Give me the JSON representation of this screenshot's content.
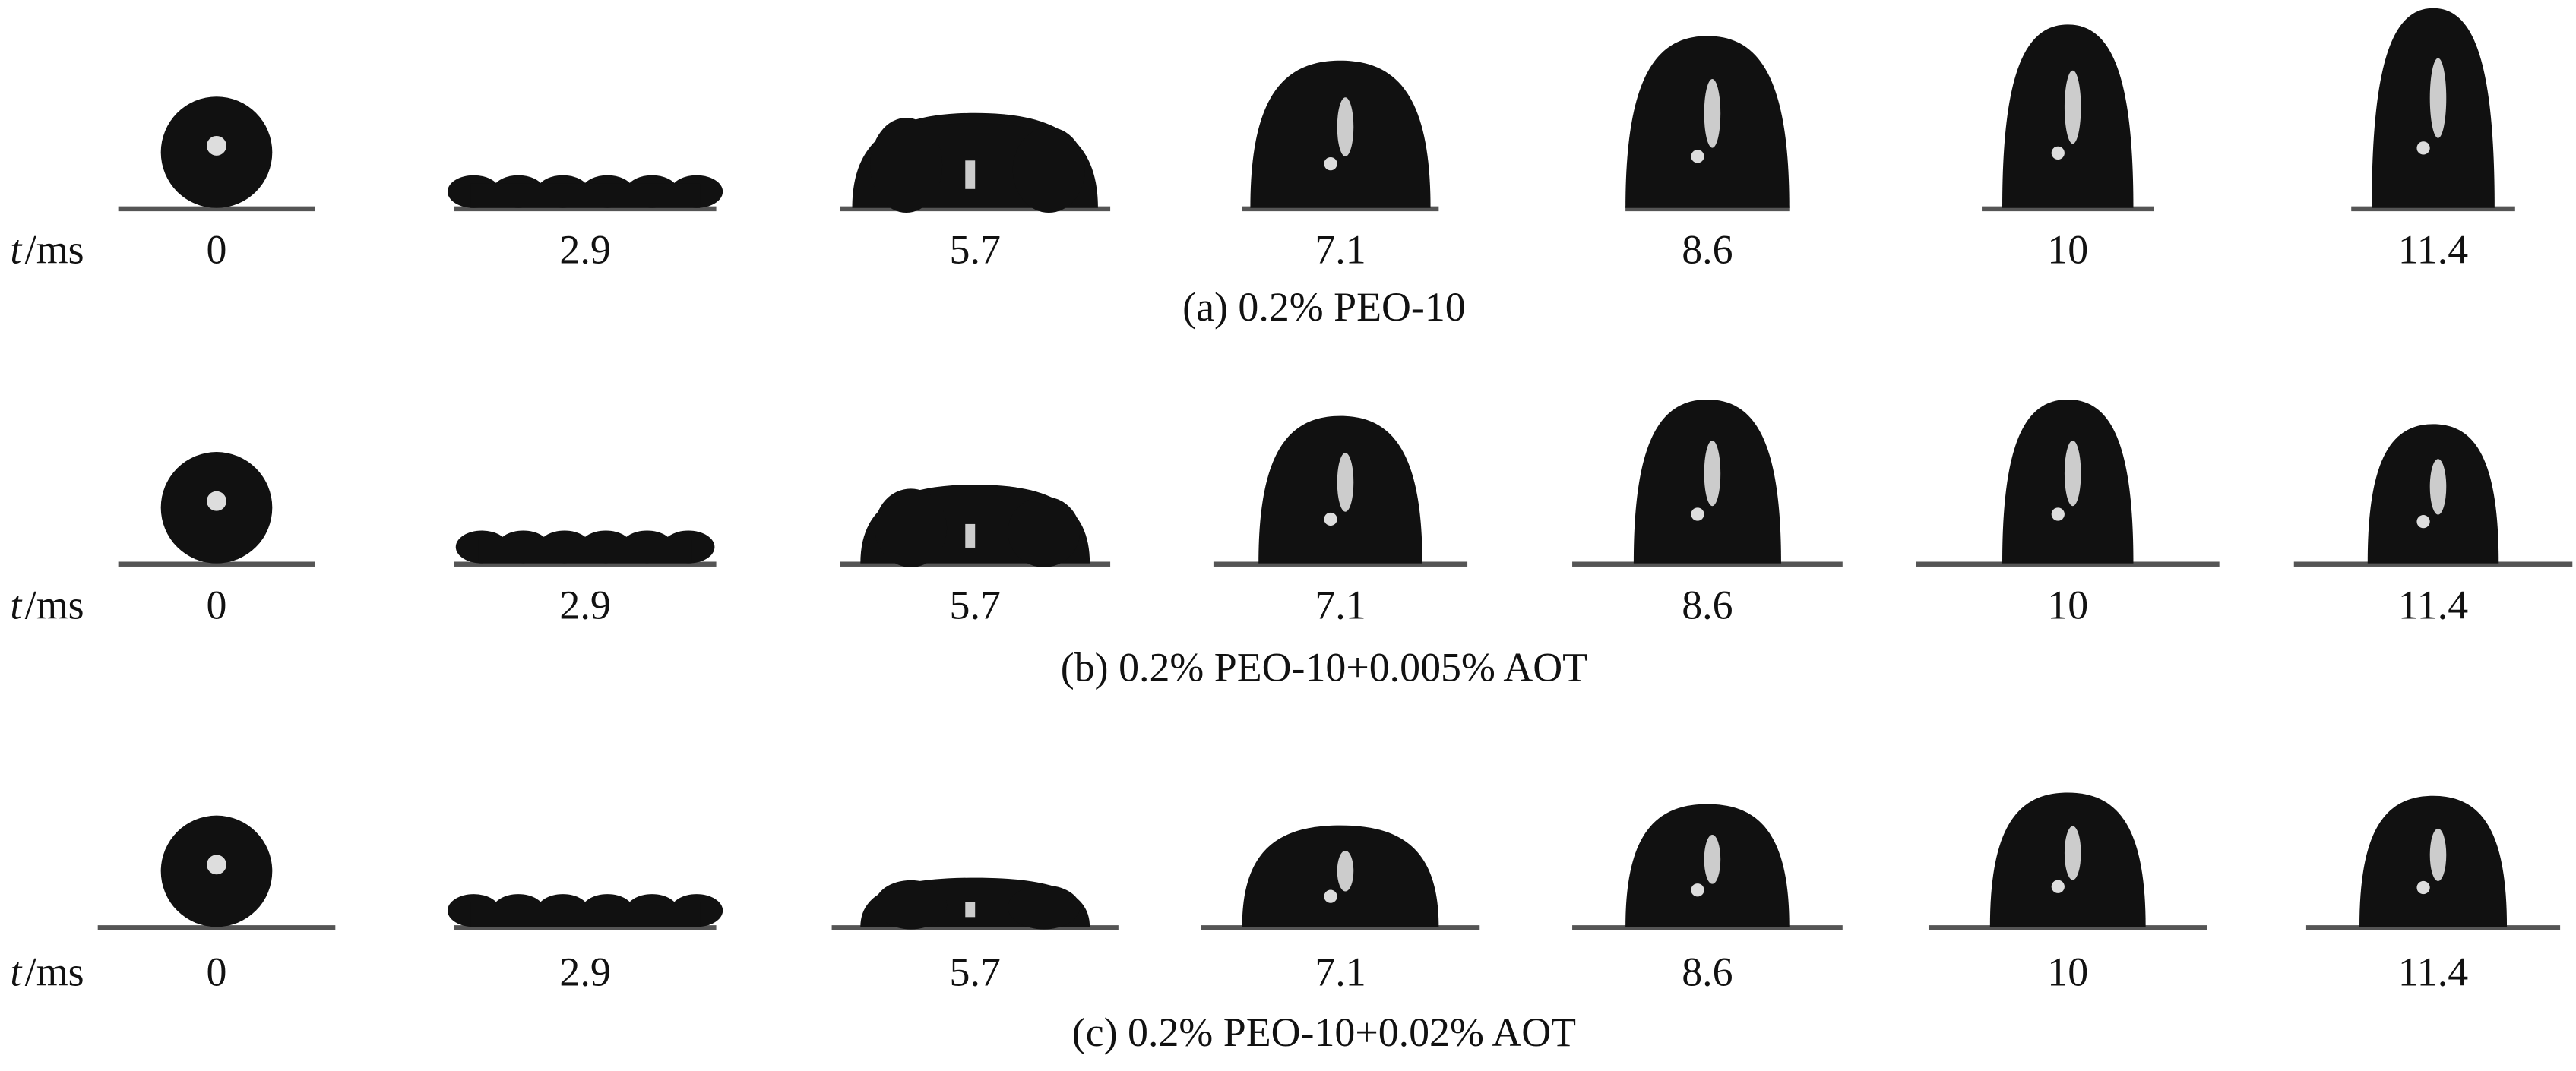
{
  "time_symbol": "t",
  "time_unit": "/ms",
  "panels": [
    {
      "caption": "(a) 0.2% PEO-10",
      "times": [
        0,
        2.9,
        5.7,
        7.1,
        8.6,
        10,
        11.4
      ]
    },
    {
      "caption": "(b) 0.2% PEO-10+0.005% AOT",
      "times": [
        0,
        2.9,
        5.7,
        7.1,
        8.6,
        10,
        11.4
      ]
    },
    {
      "caption": "(c) 0.2% PEO-10+0.02% AOT",
      "times": [
        0,
        2.9,
        5.7,
        7.1,
        8.6,
        10,
        11.4
      ]
    }
  ]
}
